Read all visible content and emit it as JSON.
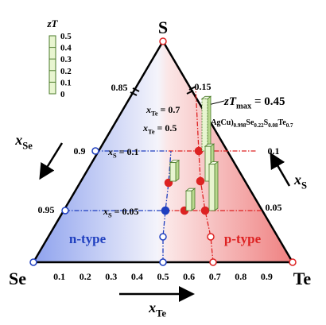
{
  "chart_data": {
    "type": "ternary-bars",
    "vertices": [
      "S",
      "Se",
      "Te"
    ],
    "bottom_ticks": [
      0.1,
      0.2,
      0.3,
      0.4,
      0.5,
      0.6,
      0.7,
      0.8,
      0.9
    ],
    "legend": {
      "title": [
        {
          "text": "zT"
        }
      ],
      "ticks": [
        0,
        0.1,
        0.2,
        0.3,
        0.4,
        0.5
      ]
    },
    "labels": [
      [
        {
          "text": "0.85"
        }
      ],
      [
        {
          "text": "0.9"
        }
      ],
      [
        {
          "text": "0.95"
        }
      ],
      [
        {
          "text": "0.15"
        }
      ],
      [
        {
          "text": "0.1"
        }
      ],
      [
        {
          "text": "0.05"
        }
      ],
      [
        {
          "text": "x"
        },
        {
          "text": "Te",
          "sub": true
        },
        {
          "text": " = 0.7"
        }
      ],
      [
        {
          "text": "x"
        },
        {
          "text": "Te",
          "sub": true
        },
        {
          "text": " = 0.5"
        }
      ],
      [
        {
          "text": "x"
        },
        {
          "text": "S",
          "sub": true
        },
        {
          "text": " = 0.1"
        }
      ],
      [
        {
          "text": "x"
        },
        {
          "text": "S",
          "sub": true
        },
        {
          "text": " = 0.05"
        }
      ],
      [
        {
          "text": "n-type"
        }
      ],
      [
        {
          "text": "p-type"
        }
      ],
      [
        {
          "text": "x"
        },
        {
          "text": "Se",
          "sub": true
        }
      ],
      [
        {
          "text": "x"
        },
        {
          "text": "S",
          "sub": true
        }
      ],
      [
        {
          "text": "x"
        },
        {
          "text": "Te",
          "sub": true
        }
      ],
      [
        {
          "text": "zT"
        },
        {
          "text": "max",
          "sub": true
        },
        {
          "text": " = 0.45"
        }
      ],
      [
        {
          "text": "(AgCu)"
        },
        {
          "text": "0.998",
          "sub": true
        },
        {
          "text": "Se"
        },
        {
          "text": "0.22",
          "sub": true
        },
        {
          "text": "S"
        },
        {
          "text": "0.08",
          "sub": true
        },
        {
          "text": "Te"
        },
        {
          "text": "0.7",
          "sub": true
        }
      ]
    ],
    "bars": [
      0.16,
      0.17,
      0.45,
      0.3,
      0.4
    ]
  }
}
